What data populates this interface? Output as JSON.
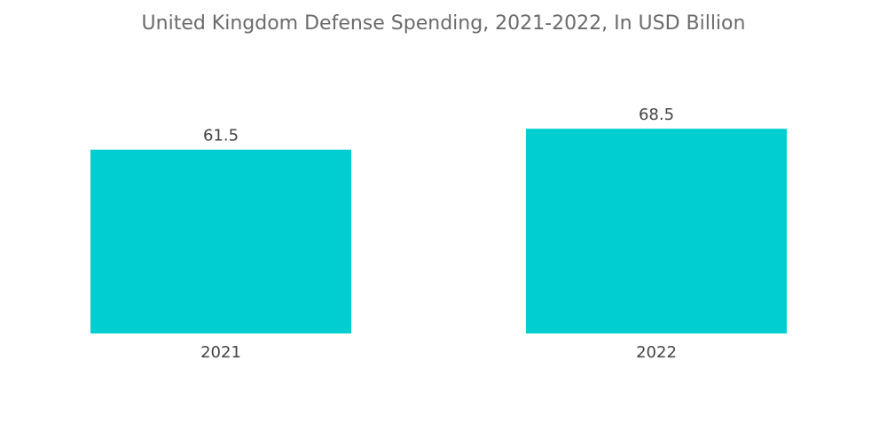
{
  "chart_data": {
    "type": "bar",
    "title": "United Kingdom Defense Spending, 2021-2022, In USD Billion",
    "categories": [
      "2021",
      "2022"
    ],
    "values": [
      61.5,
      68.5
    ],
    "value_labels": [
      "61.5",
      "68.5"
    ],
    "xlabel": "",
    "ylabel": "",
    "ylim": [
      0,
      90
    ],
    "grid": false,
    "bar_color": "#00CED1"
  }
}
